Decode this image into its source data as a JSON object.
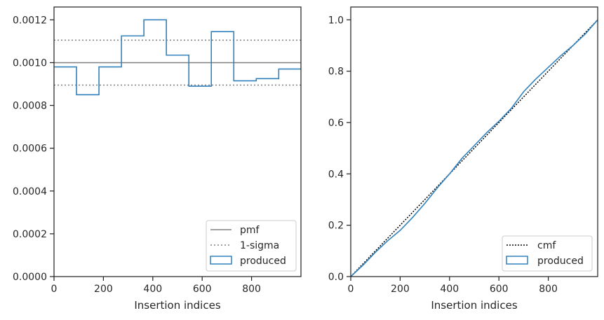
{
  "colors": {
    "hist": "#3182bd",
    "pmf": "#808080",
    "sigma": "#808080",
    "cmf": "#000000",
    "axis": "#262626"
  },
  "chart_data": [
    {
      "type": "line",
      "xlabel": "Insertion indices",
      "ylabel": "",
      "xlim": [
        0,
        1000
      ],
      "ylim": [
        0,
        0.00126
      ],
      "xticks": [
        0,
        200,
        400,
        600,
        800
      ],
      "xtick_labels": [
        "0",
        "200",
        "400",
        "600",
        "800"
      ],
      "yticks": [
        0,
        0.0002,
        0.0004,
        0.0006,
        0.0008,
        0.001,
        0.0012
      ],
      "ytick_labels": [
        "0.0000",
        "0.0002",
        "0.0004",
        "0.0006",
        "0.0008",
        "0.0010",
        "0.0012"
      ],
      "pmf": 0.001,
      "sigma": [
        0.000895,
        0.001105
      ],
      "hist": {
        "edges": [
          0,
          91,
          182,
          273,
          364,
          455,
          546,
          637,
          728,
          819,
          910,
          1000
        ],
        "values": [
          0.00098,
          0.00085,
          0.00098,
          0.001125,
          0.0012,
          0.001035,
          0.00089,
          0.001145,
          0.000915,
          0.000925,
          0.00097
        ]
      },
      "legend": {
        "position": "lower right",
        "entries": [
          "pmf",
          "1-sigma",
          "produced"
        ]
      }
    },
    {
      "type": "line",
      "xlabel": "Insertion indices",
      "ylabel": "",
      "xlim": [
        0,
        1000
      ],
      "ylim": [
        0,
        1.05
      ],
      "xticks": [
        0,
        200,
        400,
        600,
        800
      ],
      "xtick_labels": [
        "0",
        "200",
        "400",
        "600",
        "800"
      ],
      "yticks": [
        0,
        0.2,
        0.4,
        0.6,
        0.8,
        1.0
      ],
      "ytick_labels": [
        "0.0",
        "0.2",
        "0.4",
        "0.6",
        "0.8",
        "1.0"
      ],
      "cmf": {
        "x": [
          0,
          1000
        ],
        "y": [
          0,
          1
        ]
      },
      "produced": {
        "x": [
          0,
          50,
          100,
          150,
          200,
          250,
          300,
          350,
          400,
          450,
          500,
          550,
          600,
          650,
          700,
          750,
          800,
          850,
          900,
          950,
          1000
        ],
        "y": [
          0,
          0.045,
          0.095,
          0.14,
          0.18,
          0.23,
          0.285,
          0.345,
          0.4,
          0.46,
          0.51,
          0.56,
          0.605,
          0.655,
          0.72,
          0.77,
          0.815,
          0.86,
          0.9,
          0.945,
          1.0
        ]
      },
      "legend": {
        "position": "lower right",
        "entries": [
          "cmf",
          "produced"
        ]
      }
    }
  ]
}
